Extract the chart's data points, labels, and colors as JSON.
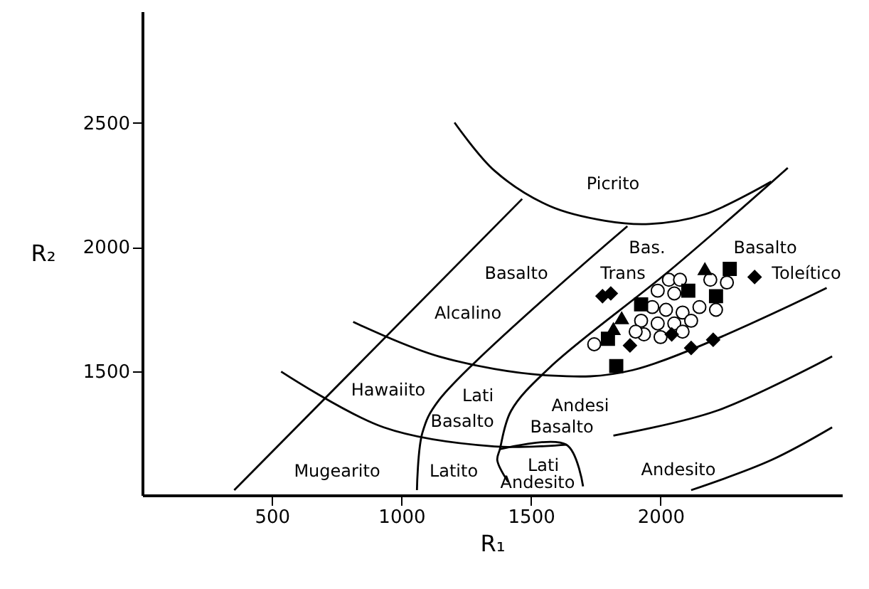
{
  "chart_data": {
    "type": "scatter",
    "xlabel": "R₁",
    "ylabel": "R₂",
    "xlim": [
      0,
      2700
    ],
    "ylim": [
      1000,
      2950
    ],
    "xticks": [
      500,
      1000,
      1500,
      2000
    ],
    "yticks": [
      1500,
      2000,
      2500
    ],
    "grid": false,
    "series": [
      {
        "type": "line",
        "color": "#000000",
        "marker": "none",
        "x": [
          1205,
          1359,
          1573,
          1786,
          1957,
          2171,
          2427
        ],
        "values": [
          2502,
          2308,
          2165,
          2106,
          2093,
          2132,
          2264
        ]
      },
      {
        "type": "line",
        "color": "#000000",
        "marker": "none",
        "x": [
          355,
          1466
        ],
        "values": [
          1020,
          2194
        ]
      },
      {
        "type": "line",
        "color": "#000000",
        "marker": "none",
        "x": [
          1060,
          1081,
          1145,
          1872
        ],
        "values": [
          1020,
          1251,
          1383,
          2084
        ]
      },
      {
        "type": "line",
        "color": "#000000",
        "marker": "none",
        "x": [
          1412,
          1370,
          1380,
          1423,
          1573,
          2043,
          2491
        ],
        "values": [
          1053,
          1141,
          1185,
          1339,
          1515,
          1912,
          2319
        ]
      },
      {
        "type": "line",
        "color": "#000000",
        "marker": "none",
        "x": [
          1380,
          1637,
          1701
        ],
        "values": [
          1185,
          1203,
          1035
        ]
      },
      {
        "type": "line",
        "color": "#000000",
        "marker": "none",
        "x": [
          814,
          1145,
          1573,
          1893,
          2641
        ],
        "values": [
          1698,
          1559,
          1482,
          1504,
          1835
        ]
      },
      {
        "type": "line",
        "color": "#000000",
        "marker": "none",
        "x": [
          536,
          932,
          1359,
          1637
        ],
        "values": [
          1498,
          1273,
          1196,
          1203
        ]
      },
      {
        "type": "line",
        "color": "#000000",
        "marker": "none",
        "x": [
          1818,
          2214,
          2662
        ],
        "values": [
          1240,
          1339,
          1559
        ]
      },
      {
        "type": "line",
        "color": "#000000",
        "marker": "none",
        "x": [
          2118,
          2427,
          2662
        ],
        "values": [
          1020,
          1141,
          1273
        ]
      },
      {
        "color": "#ffffff",
        "marker": "circle",
        "x": [
          1744,
          2032,
          2075,
          1989,
          2053,
          1968,
          2021,
          2085,
          1925,
          1989,
          2053,
          2118,
          1936,
          2000,
          2085,
          2214,
          2256,
          2192,
          1904,
          2150
        ],
        "values": [
          1608,
          1868,
          1868,
          1824,
          1813,
          1758,
          1747,
          1736,
          1703,
          1692,
          1692,
          1703,
          1648,
          1637,
          1659,
          1747,
          1857,
          1868,
          1659,
          1758
        ]
      },
      {
        "color": "#000000",
        "marker": "square",
        "x": [
          2267,
          1829,
          1797,
          1925,
          2214,
          2107
        ],
        "values": [
          1912,
          1520,
          1630,
          1769,
          1802,
          1824
        ]
      },
      {
        "color": "#000000",
        "marker": "diamond",
        "x": [
          1776,
          1808,
          2363,
          2118,
          2203,
          2043,
          1882
        ],
        "values": [
          1802,
          1813,
          1879,
          1593,
          1626,
          1648,
          1603
        ]
      },
      {
        "color": "#000000",
        "marker": "triangle",
        "x": [
          2171,
          1850,
          1818
        ],
        "values": [
          1912,
          1714,
          1670
        ]
      }
    ],
    "annotations": [
      "Picrito",
      "Basalto",
      "Alcalino",
      "Bas.",
      "Trans",
      "Basalto",
      "Toleítico",
      "Hawaiito",
      "Lati",
      "Basalto",
      "Andesi",
      "Basalto",
      "Mugearito",
      "Latito",
      "Lati",
      "Andesito",
      "Andesito"
    ]
  }
}
